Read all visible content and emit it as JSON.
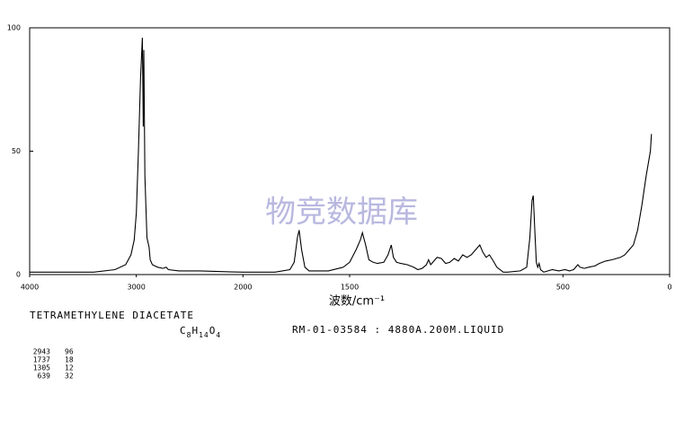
{
  "chart_data": {
    "type": "line",
    "x_label": "波数/cm⁻¹",
    "watermark": "物竞数据库",
    "xlim": [
      4000,
      0
    ],
    "x_scale": {
      "break": 2000,
      "expansion": 2
    },
    "xticks": [
      4000,
      3000,
      2000,
      1500,
      500,
      0
    ],
    "ylim": [
      0,
      100
    ],
    "yticks": [
      0,
      50,
      100
    ],
    "series": [
      {
        "color": "#000000",
        "x": [
          4000,
          3400,
          3200,
          3100,
          3050,
          3020,
          3000,
          2980,
          2960,
          2943,
          2935,
          2930,
          2920,
          2900,
          2880,
          2870,
          2850,
          2800,
          2750,
          2720,
          2700,
          2600,
          2400,
          2200,
          2000,
          1850,
          1780,
          1760,
          1745,
          1737,
          1725,
          1710,
          1690,
          1600,
          1530,
          1500,
          1470,
          1450,
          1440,
          1425,
          1410,
          1390,
          1370,
          1340,
          1320,
          1305,
          1295,
          1280,
          1260,
          1230,
          1200,
          1180,
          1160,
          1140,
          1130,
          1120,
          1110,
          1090,
          1070,
          1050,
          1030,
          1010,
          990,
          970,
          950,
          930,
          910,
          890,
          875,
          860,
          845,
          830,
          810,
          780,
          760,
          700,
          670,
          655,
          645,
          639,
          632,
          625,
          618,
          612,
          605,
          590,
          570,
          550,
          520,
          490,
          470,
          450,
          430,
          420,
          400,
          380,
          350,
          330,
          300,
          270,
          250,
          230,
          210,
          190,
          170,
          150,
          130,
          110,
          90,
          85
        ],
        "values": [
          1,
          1,
          2,
          4,
          8,
          14,
          25,
          50,
          80,
          96,
          60,
          91,
          40,
          15,
          11,
          6,
          4,
          3,
          2.5,
          3,
          2,
          1.5,
          1.5,
          1.2,
          1,
          1,
          2,
          5,
          15,
          18,
          10,
          3,
          1.5,
          1.5,
          3,
          5,
          10,
          14,
          17,
          12,
          6,
          5,
          4.5,
          5,
          8,
          12,
          7,
          5,
          4.5,
          4,
          3,
          2,
          2.5,
          4,
          6,
          4,
          5,
          7,
          6.5,
          4.5,
          5,
          6.5,
          5.5,
          8,
          7,
          8,
          10,
          12,
          9,
          7,
          8,
          6,
          3,
          1,
          1,
          1.5,
          3,
          15,
          30,
          32,
          18,
          5,
          3,
          4.5,
          2,
          1,
          1.5,
          2,
          1.5,
          2,
          1.5,
          2,
          4,
          3,
          2.5,
          3,
          3.5,
          4.5,
          5.5,
          6,
          6.5,
          7,
          8,
          10,
          12,
          18,
          28,
          40,
          50,
          57
        ]
      }
    ]
  },
  "compound": {
    "name": "TETRAMETHYLENE DIACETATE",
    "formula": [
      "C",
      "8",
      "H",
      "14",
      "O",
      "4"
    ],
    "code": "RM-01-03584 : 4880A.200M.LIQUID"
  },
  "peaks": {
    "rows": [
      [
        2943,
        96
      ],
      [
        1737,
        18
      ],
      [
        1305,
        12
      ],
      [
        639,
        32
      ]
    ]
  }
}
